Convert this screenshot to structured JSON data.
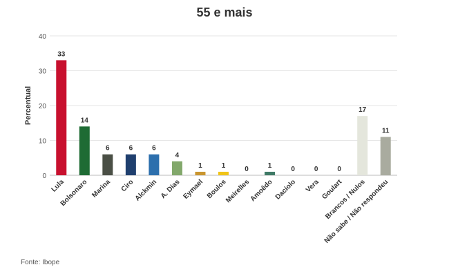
{
  "title": "55 e mais",
  "source": "Fonte: Ibope",
  "chart_data": {
    "type": "bar",
    "title": "55 e mais",
    "xlabel": "",
    "ylabel": "Percentual",
    "ylim": [
      0,
      40
    ],
    "yticks": [
      0,
      10,
      20,
      30,
      40
    ],
    "grid": true,
    "categories": [
      "Lula",
      "Bolsonaro",
      "Marina",
      "Ciro",
      "Alckmin",
      "A. Dias",
      "Eymael",
      "Boulos",
      "Meirelles",
      "Amoêdo",
      "Daciolo",
      "Vera",
      "Goulart",
      "Brancos / Nulos",
      "Não sabe / Não respondeu"
    ],
    "values": [
      33,
      14,
      6,
      6,
      6,
      4,
      1,
      1,
      0,
      1,
      0,
      0,
      0,
      17,
      11
    ],
    "colors": [
      "#c8102e",
      "#1e6b34",
      "#4a4f45",
      "#1f3f6e",
      "#2c6fad",
      "#82a86b",
      "#c9952f",
      "#f0c419",
      "#cccccc",
      "#3f7a66",
      "#cccccc",
      "#cccccc",
      "#cccccc",
      "#e4e6dc",
      "#a9ab9f"
    ],
    "data_labels": [
      "33",
      "14",
      "6",
      "6",
      "6",
      "4",
      "1",
      "1",
      "0",
      "1",
      "0",
      "0",
      "0",
      "17",
      "11"
    ]
  }
}
